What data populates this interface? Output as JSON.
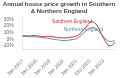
{
  "chart_data": {
    "type": "line",
    "title": "Annual house price growth in Southern & Northern England",
    "categories": [
      "Jan 2017",
      null,
      null,
      null,
      null,
      null,
      "Jan 2018",
      null,
      null,
      null,
      null,
      null,
      "Jan 2019",
      null,
      null,
      null,
      null,
      null,
      "Jan 2020",
      null,
      null,
      null,
      null,
      null,
      "Jan 2021",
      null,
      null,
      null,
      null,
      null,
      "Oct 2022",
      null,
      null,
      null,
      null,
      null,
      "Jan 2023",
      null,
      null,
      null,
      null,
      null
    ],
    "series": [
      {
        "name": "Southern England",
        "color": "#cc3333",
        "values": [
          5.5,
          5.5,
          5.0,
          5.0,
          5.5,
          6.0,
          5.5,
          5.0,
          4.5,
          4.0,
          4.0,
          4.5,
          4.5,
          4.0,
          3.5,
          3.0,
          2.5,
          2.5,
          2.0,
          2.0,
          2.5,
          3.0,
          3.5,
          4.0,
          5.0,
          7.0,
          10.0,
          14.0,
          18.0,
          22.0,
          26.0,
          27.0,
          25.0,
          22.0,
          16.0,
          8.0,
          2.0,
          -4.0,
          -9.0,
          -10.0,
          -8.0,
          -5.0
        ]
      },
      {
        "name": "Northern England",
        "color": "#6688bb",
        "values": [
          4.5,
          4.5,
          4.5,
          4.0,
          4.0,
          4.0,
          3.5,
          3.5,
          3.0,
          2.5,
          2.0,
          1.5,
          1.0,
          0.5,
          0.0,
          -0.5,
          -1.0,
          -1.5,
          -2.0,
          -2.0,
          -1.5,
          -1.0,
          -0.5,
          0.0,
          1.0,
          3.0,
          6.0,
          9.0,
          12.0,
          15.0,
          17.0,
          18.0,
          17.5,
          15.0,
          12.0,
          8.0,
          4.0,
          0.5,
          -2.0,
          -3.5,
          -3.0,
          -2.0
        ]
      }
    ],
    "ylim": [
      -15,
      35
    ],
    "yticks": [
      {
        "value": -10,
        "label": "-10%"
      },
      {
        "value": 0,
        "label": "0%"
      },
      {
        "value": 10,
        "label": "10%"
      },
      {
        "value": 20,
        "label": "20%"
      },
      {
        "value": 30,
        "label": "30%"
      }
    ],
    "grid": false,
    "annotations": [
      {
        "text": "Southern England",
        "x": 22,
        "y": 24,
        "color": "#cc3333"
      },
      {
        "text": "Northern England",
        "x": 27,
        "y": 12,
        "color": "#6688bb"
      }
    ]
  }
}
